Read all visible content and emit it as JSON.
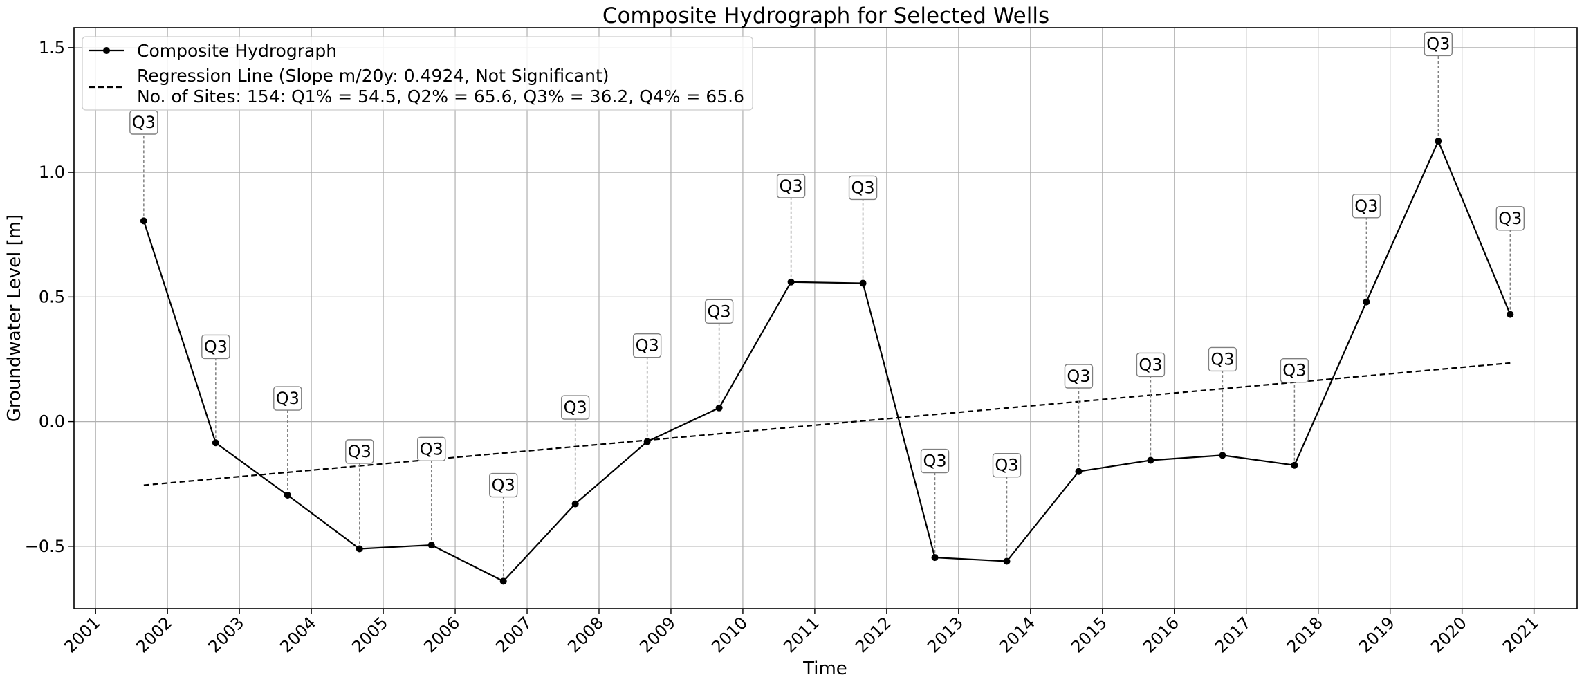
{
  "chart_data": {
    "type": "line",
    "title": "Composite Hydrograph for Selected Wells",
    "xlabel": "Time",
    "ylabel": "Groundwater Level [m]",
    "xlim": [
      2000.7,
      2021.6
    ],
    "ylim": [
      -0.75,
      1.58
    ],
    "x_ticks": [
      2001,
      2002,
      2003,
      2004,
      2005,
      2006,
      2007,
      2008,
      2009,
      2010,
      2011,
      2012,
      2013,
      2014,
      2015,
      2016,
      2017,
      2018,
      2019,
      2020,
      2021
    ],
    "x_tick_labels": [
      "2001",
      "2002",
      "2003",
      "2004",
      "2005",
      "2006",
      "2007",
      "2008",
      "2009",
      "2010",
      "2011",
      "2012",
      "2013",
      "2014",
      "2015",
      "2016",
      "2017",
      "2018",
      "2019",
      "2020",
      "2021"
    ],
    "y_ticks": [
      -0.5,
      0.0,
      0.5,
      1.0,
      1.5
    ],
    "y_tick_labels": [
      "−0.5",
      "0.0",
      "0.5",
      "1.0",
      "1.5"
    ],
    "grid": true,
    "legend_position": "upper-left",
    "series": [
      {
        "name": "Composite Hydrograph",
        "style": "solid-line-with-dots",
        "color": "#000000",
        "x": [
          2001.67,
          2002.67,
          2003.67,
          2004.67,
          2005.67,
          2006.67,
          2007.67,
          2008.67,
          2009.67,
          2010.67,
          2011.67,
          2012.67,
          2013.67,
          2014.67,
          2015.67,
          2016.67,
          2017.67,
          2018.67,
          2019.67,
          2020.67
        ],
        "values": [
          0.805,
          -0.085,
          -0.295,
          -0.51,
          -0.495,
          -0.64,
          -0.33,
          -0.08,
          0.055,
          0.56,
          0.555,
          -0.545,
          -0.56,
          -0.2,
          -0.155,
          -0.135,
          -0.175,
          0.48,
          1.125,
          0.43
        ]
      },
      {
        "name": "Regression Line (Slope m/20y: 0.4924, Not Significant)",
        "style": "dashed",
        "color": "#000000",
        "x": [
          2001.67,
          2020.67
        ],
        "values": [
          -0.255,
          0.235
        ]
      }
    ],
    "legend": [
      {
        "label": "Composite Hydrograph",
        "style": "solid-line-with-dots"
      },
      {
        "label": "Regression Line (Slope m/20y: 0.4924, Not Significant)",
        "style": "dashed"
      }
    ],
    "legend_note": "No. of Sites: 154: Q1% = 54.5, Q2% = 65.6, Q3% = 36.2, Q4% = 65.6",
    "annotations": {
      "text": "Q3",
      "label_y": [
        1.2,
        0.3,
        0.093,
        -0.12,
        -0.11,
        -0.255,
        0.057,
        0.305,
        0.442,
        0.945,
        0.938,
        -0.158,
        -0.175,
        0.182,
        0.228,
        0.25,
        0.205,
        0.865,
        1.515,
        0.815
      ]
    }
  }
}
